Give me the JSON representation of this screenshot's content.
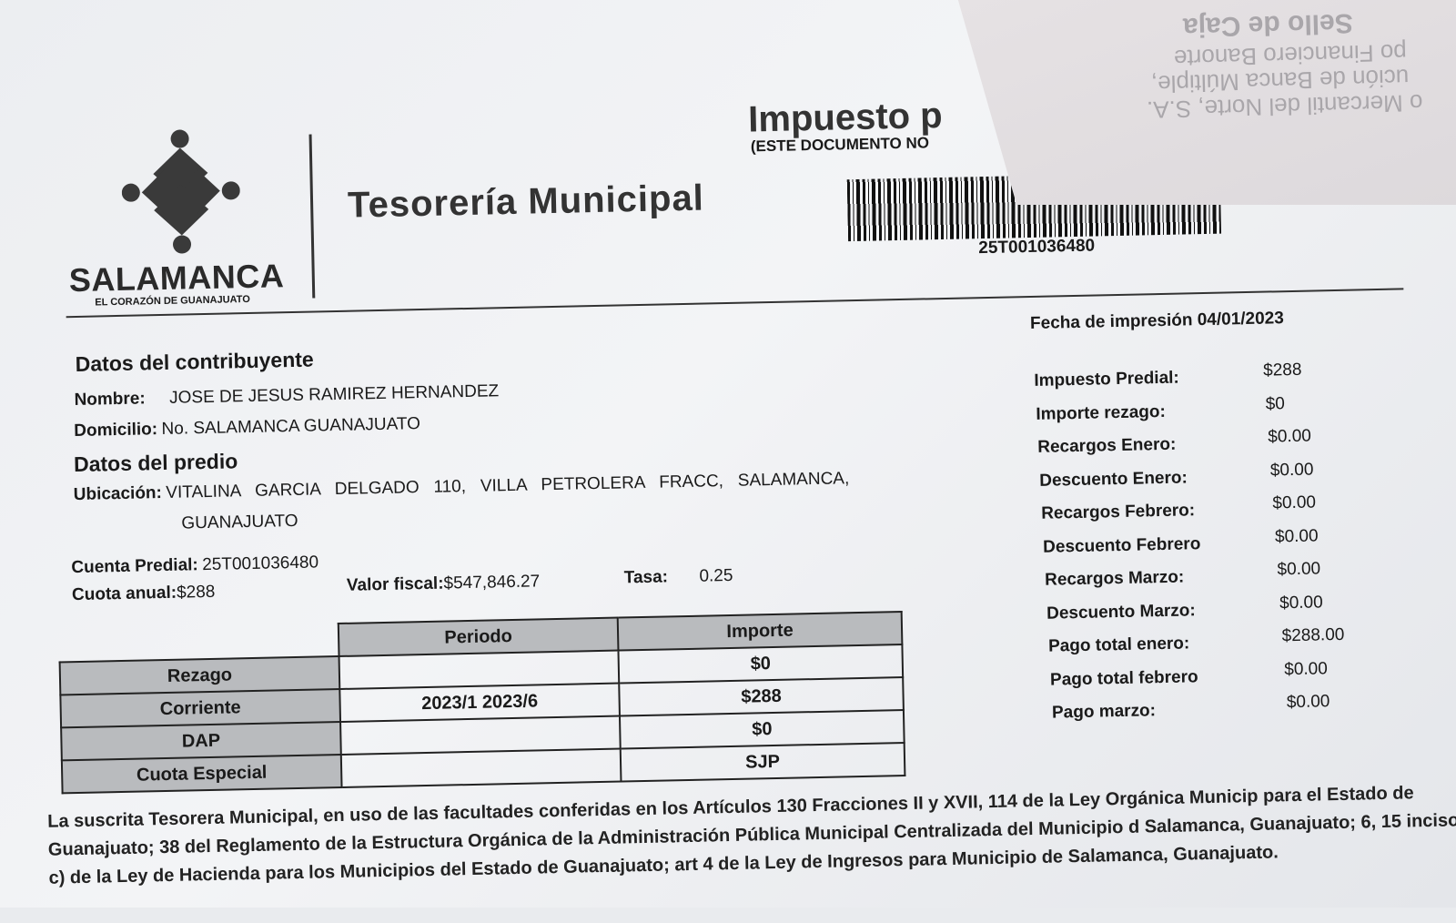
{
  "header": {
    "brand": "SALAMANCA",
    "brand_tagline": "EL CORAZÓN DE GUANAJUATO",
    "department": "Tesorería Municipal",
    "title": "Impuesto p",
    "title_note": "(ESTE DOCUMENTO NO",
    "barcode_number": "25T001036480"
  },
  "stamp_overlay": {
    "line1": "Sello de Caja",
    "line2": "po Financiero Banorte",
    "line3": "ución de Banca Múltiple,",
    "line4": "o Mercantil del Norte, S.A."
  },
  "print_date": {
    "label": "Fecha de impresión",
    "value": "04/01/2023"
  },
  "contribuyente": {
    "heading": "Datos del contribuyente",
    "nombre_label": "Nombre:",
    "nombre": "JOSE DE JESUS RAMIREZ HERNANDEZ",
    "domicilio_label": "Domicilio:",
    "domicilio": "No. SALAMANCA GUANAJUATO"
  },
  "predio": {
    "heading": "Datos del predio",
    "ubicacion_label": "Ubicación:",
    "ubicacion_line1": "VITALINA   GARCIA   DELGADO   110,   VILLA   PETROLERA   FRACC,   SALAMANCA,",
    "ubicacion_line2": "GUANAJUATO",
    "cuenta_label": "Cuenta Predial:",
    "cuenta": "25T001036480",
    "cuota_label": "Cuota anual:",
    "cuota": "$288",
    "valor_label": "Valor fiscal:",
    "valor": "$547,846.27",
    "tasa_label": "Tasa:",
    "tasa": "0.25"
  },
  "table": {
    "headers": [
      "Periodo",
      "Importe"
    ],
    "rows": [
      {
        "concepto": "Rezago",
        "periodo": "",
        "importe": "$0"
      },
      {
        "concepto": "Corriente",
        "periodo": "2023/1 2023/6",
        "importe": "$288"
      },
      {
        "concepto": "DAP",
        "periodo": "",
        "importe": "$0"
      },
      {
        "concepto": "Cuota Especial",
        "periodo": "",
        "importe": "SJP"
      }
    ]
  },
  "summary": [
    {
      "label": "Impuesto Predial:",
      "value": "$288"
    },
    {
      "label": "Importe rezago:",
      "value": "$0"
    },
    {
      "label": "Recargos Enero:",
      "value": "$0.00"
    },
    {
      "label": "Descuento Enero:",
      "value": "$0.00"
    },
    {
      "label": "Recargos Febrero:",
      "value": "$0.00"
    },
    {
      "label": "Descuento Febrero",
      "value": "$0.00"
    },
    {
      "label": "Recargos Marzo:",
      "value": "$0.00"
    },
    {
      "label": "Descuento Marzo:",
      "value": "$0.00"
    },
    {
      "label": "Pago total enero:",
      "value": "$288.00"
    },
    {
      "label": "Pago total febrero",
      "value": "$0.00"
    },
    {
      "label": "Pago marzo:",
      "value": "$0.00"
    }
  ],
  "legal_text": "La suscrita Tesorera Municipal, en uso de las facultades conferidas en los Artículos 130 Fracciones II y XVII, 114 de la Ley Orgánica Municip para el Estado de Guanajuato; 38 del Reglamento de la Estructura Orgánica de la Administración Pública Municipal Centralizada del Municipio d Salamanca, Guanajuato; 6, 15 inciso c) de la Ley de Hacienda para los Municipios del Estado de Guanajuato; art 4 de la Ley de Ingresos para Municipio de Salamanca, Guanajuato."
}
